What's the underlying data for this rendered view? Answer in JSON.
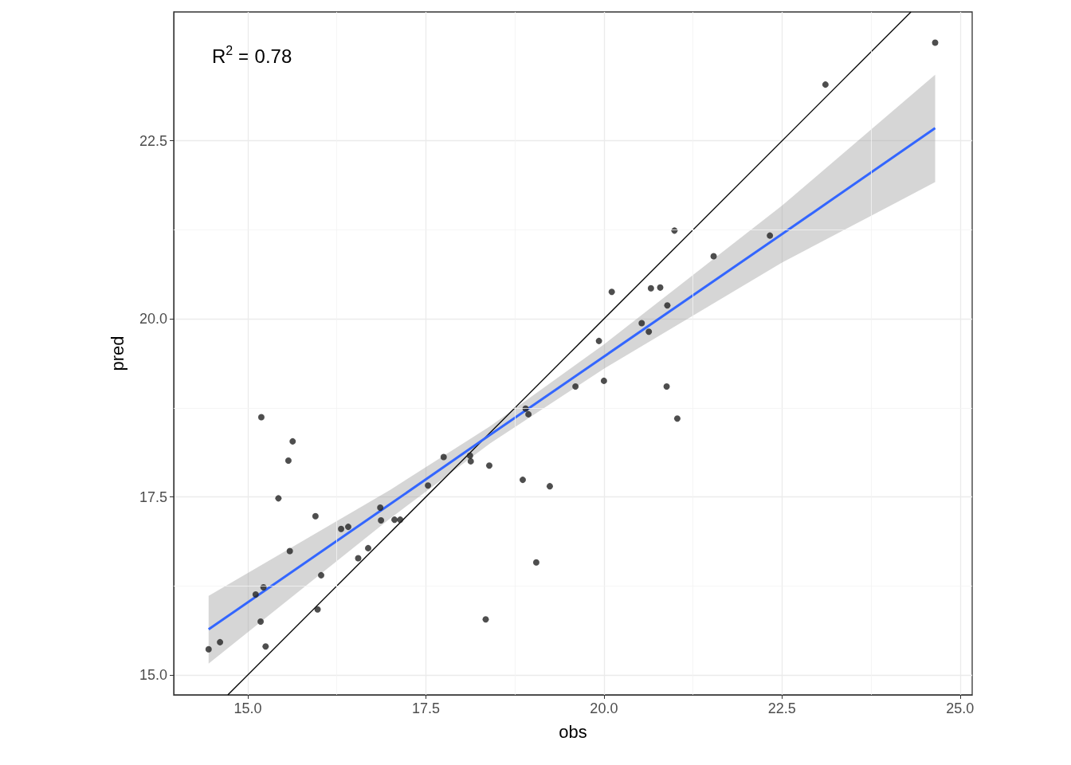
{
  "chart_data": {
    "type": "scatter",
    "xlabel": "obs",
    "ylabel": "pred",
    "annotations": [
      "R$^{2}$ = 0.78"
    ],
    "xlim": [
      13.96,
      25.17
    ],
    "xticks": [
      {
        "value": 15,
        "label": "15.0"
      },
      17.5,
      {
        "value": 20,
        "label": "20.0"
      },
      22.5,
      {
        "value": 25,
        "label": "25.0"
      }
    ],
    "ylim": [
      14.72,
      24.31
    ],
    "yticks": [
      {
        "value": 15,
        "label": "15.0"
      },
      17.5,
      {
        "value": 20,
        "label": "20.0"
      },
      22.5
    ],
    "grid": true,
    "marker": "circle",
    "series": [
      {
        "color": "#222222",
        "x": [
          14.45,
          14.61,
          15.11,
          15.22,
          15.18,
          15.25,
          15.19,
          15.63,
          15.57,
          15.43,
          15.59,
          15.95,
          15.98,
          16.03,
          16.31,
          16.41,
          16.55,
          16.69,
          16.86,
          16.87,
          17.06,
          17.14,
          17.53,
          17.75,
          18.12,
          18.13,
          18.39,
          18.34,
          18.86,
          18.9,
          18.94,
          19.24,
          19.05,
          19.6,
          19.93,
          20.0,
          20.11,
          20.53,
          20.63,
          20.66,
          20.79,
          20.89,
          20.88,
          20.99,
          21.03,
          21.54,
          22.33,
          23.11,
          24.65
        ],
        "values": [
          15.36,
          15.46,
          16.13,
          16.23,
          15.75,
          15.4,
          18.62,
          18.28,
          18.01,
          17.48,
          16.74,
          17.23,
          15.92,
          16.4,
          17.05,
          17.08,
          16.64,
          16.78,
          17.35,
          17.17,
          17.18,
          17.18,
          17.66,
          18.06,
          18.08,
          18.0,
          17.94,
          15.78,
          17.74,
          18.74,
          18.66,
          17.65,
          16.58,
          19.05,
          19.69,
          19.13,
          20.38,
          19.94,
          19.82,
          20.43,
          20.44,
          20.19,
          19.05,
          21.24,
          18.6,
          20.88,
          21.17,
          23.29,
          23.88
        ]
      },
      {
        "type": "line",
        "color": "#000000",
        "marker": "none",
        "x": [
          14.72,
          24.31
        ],
        "values": [
          14.72,
          24.31
        ]
      },
      {
        "type": "line",
        "color": "#3366ff",
        "marker": "none",
        "x": [
          14.45,
          17.0,
          18.4,
          20.0,
          22.5,
          24.65
        ],
        "values": [
          15.64,
          17.4,
          18.37,
          19.47,
          21.19,
          22.68
        ],
        "lower": [
          15.16,
          17.2,
          18.25,
          19.3,
          20.79,
          21.92
        ],
        "upper": [
          16.11,
          17.6,
          18.49,
          19.64,
          21.59,
          23.43
        ]
      }
    ]
  }
}
